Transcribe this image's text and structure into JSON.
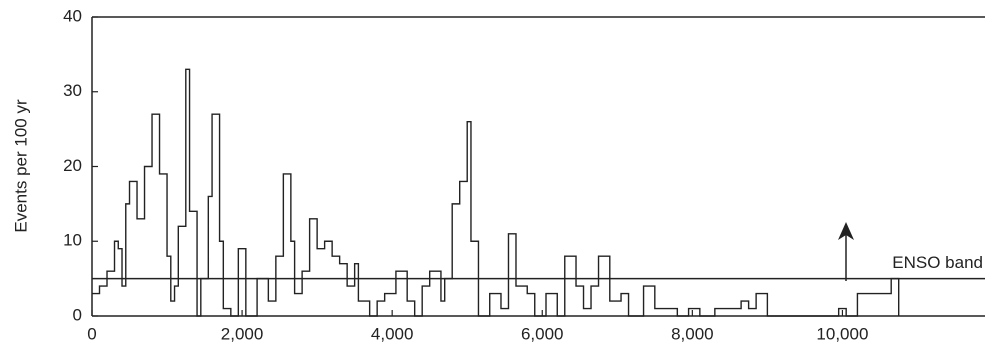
{
  "chart_data": {
    "type": "line",
    "step": true,
    "ylabel": "Events per 100 yr",
    "xlim": [
      0,
      11900
    ],
    "ylim": [
      0,
      40
    ],
    "xticks": [
      0,
      {
        "value": 2000,
        "label": "2,000"
      },
      {
        "value": 4000,
        "label": "4,000"
      },
      {
        "value": 6000,
        "label": "6,000"
      },
      {
        "value": 8000,
        "label": "8,000"
      },
      {
        "value": 10000,
        "label": "10,000"
      }
    ],
    "yticks": [
      0,
      10,
      20,
      30,
      40
    ],
    "reference_line": {
      "value": 5,
      "label": "ENSO band"
    },
    "series": [
      {
        "color": "#222222",
        "x": [
          0,
          100,
          200,
          300,
          350,
          400,
          450,
          500,
          600,
          700,
          800,
          900,
          1000,
          1050,
          1100,
          1150,
          1250,
          1300,
          1400,
          1450,
          1550,
          1600,
          1700,
          1750,
          1850,
          1950,
          2050,
          2200,
          2350,
          2450,
          2550,
          2650,
          2700,
          2800,
          2900,
          3000,
          3100,
          3200,
          3300,
          3400,
          3500,
          3550,
          3700,
          3800,
          3900,
          4050,
          4200,
          4300,
          4400,
          4500,
          4650,
          4700,
          4800,
          4900,
          5000,
          5050,
          5150,
          5300,
          5450,
          5550,
          5650,
          5800,
          5900,
          6050,
          6200,
          6300,
          6450,
          6550,
          6650,
          6750,
          6900,
          7050,
          7150,
          7350,
          7500,
          7650,
          7800,
          7950,
          8100,
          8300,
          8500,
          8650,
          8750,
          8850,
          9000,
          9900,
          9950,
          10050,
          10200,
          10500,
          10650,
          10750
        ],
        "values": [
          3,
          4,
          6,
          10,
          9,
          4,
          15,
          18,
          13,
          20,
          27,
          19,
          8,
          2,
          4,
          12,
          33,
          14,
          0,
          5,
          16,
          27,
          10,
          1,
          0,
          9,
          0,
          5,
          2,
          8,
          19,
          10,
          3,
          6,
          13,
          9,
          10,
          8,
          7,
          4,
          7,
          2,
          0,
          2,
          3,
          6,
          2,
          0,
          4,
          6,
          2,
          5,
          15,
          18,
          26,
          10,
          0,
          3,
          1,
          11,
          4,
          3,
          0,
          3,
          0,
          8,
          4,
          1,
          4,
          8,
          2,
          3,
          0,
          4,
          1,
          1,
          0,
          1,
          0,
          1,
          1,
          2,
          1,
          3,
          0,
          0,
          1,
          0,
          3,
          3,
          5,
          0
        ]
      }
    ]
  }
}
